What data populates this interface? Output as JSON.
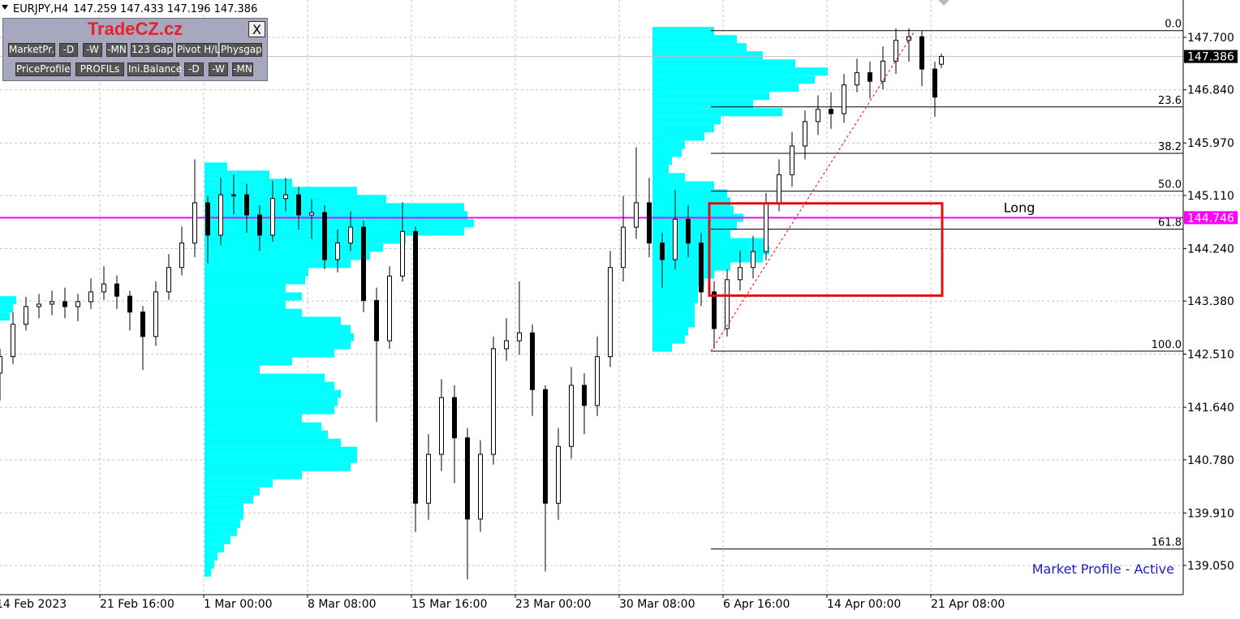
{
  "chart_data": {
    "type": "candlestick",
    "symbol": "EURJPY,H4",
    "x": [
      0,
      4,
      8,
      12,
      16,
      20,
      24,
      28,
      32,
      36,
      40,
      44,
      48,
      52,
      56,
      60,
      64,
      68,
      72,
      76,
      80,
      84,
      88,
      92,
      96,
      100,
      104,
      108,
      112,
      116,
      120,
      124,
      128,
      132,
      136,
      140,
      144,
      148,
      152,
      156,
      160,
      164,
      168,
      172,
      176,
      180,
      184,
      188,
      192,
      196,
      200,
      204,
      208,
      212,
      216,
      220,
      224,
      228,
      232,
      236,
      240,
      244,
      248,
      252,
      256,
      260,
      264,
      268,
      272,
      276,
      280,
      284,
      288,
      290
    ],
    "open": [
      142.2,
      142.47,
      143.0,
      143.29,
      143.33,
      143.37,
      143.29,
      143.37,
      143.53,
      143.66,
      143.46,
      143.2,
      142.8,
      143.53,
      143.93,
      144.33,
      144.99,
      144.46,
      145.12,
      145.12,
      144.79,
      144.46,
      145.06,
      145.12,
      144.79,
      144.83,
      144.06,
      144.33,
      144.59,
      143.39,
      142.73,
      143.79,
      144.52,
      140.07,
      140.87,
      141.8,
      141.14,
      139.81,
      140.87,
      142.6,
      142.73,
      142.86,
      141.93,
      140.07,
      141.0,
      142.0,
      141.67,
      142.47,
      143.93,
      144.59,
      144.99,
      144.33,
      144.06,
      144.72,
      144.33,
      143.53,
      142.93,
      143.73,
      143.93,
      144.19,
      144.99,
      145.45,
      145.92,
      146.32,
      146.52,
      146.45,
      146.92,
      147.12,
      146.98,
      147.31,
      147.65,
      147.71,
      147.18,
      147.259
    ],
    "high": [
      142.6,
      143.2,
      143.45,
      143.5,
      143.55,
      143.6,
      143.5,
      143.75,
      143.95,
      143.8,
      143.55,
      143.3,
      143.7,
      144.15,
      144.6,
      145.7,
      145.1,
      145.4,
      145.45,
      145.3,
      144.95,
      145.35,
      145.4,
      145.25,
      145.05,
      144.95,
      144.55,
      144.85,
      144.7,
      143.6,
      143.95,
      145.0,
      144.6,
      141.2,
      142.1,
      142.0,
      141.3,
      141.1,
      142.8,
      143.1,
      143.7,
      143.0,
      142.0,
      141.3,
      142.3,
      142.2,
      142.8,
      144.2,
      145.1,
      145.9,
      145.4,
      144.5,
      145.2,
      144.95,
      144.5,
      143.7,
      143.9,
      144.2,
      144.45,
      145.15,
      145.7,
      146.15,
      146.5,
      146.75,
      146.8,
      147.1,
      147.35,
      147.3,
      147.55,
      147.85,
      147.85,
      147.8,
      147.3,
      147.433
    ],
    "low": [
      141.75,
      142.35,
      142.9,
      143.1,
      143.15,
      143.1,
      143.05,
      143.25,
      143.4,
      143.25,
      142.9,
      142.25,
      142.65,
      143.4,
      143.8,
      144.1,
      144.0,
      144.3,
      144.8,
      144.5,
      144.2,
      144.35,
      144.85,
      144.55,
      144.4,
      143.9,
      143.85,
      144.2,
      143.2,
      141.4,
      142.6,
      143.7,
      139.6,
      139.8,
      140.6,
      140.4,
      138.82,
      139.6,
      140.7,
      142.4,
      142.5,
      141.5,
      138.95,
      139.8,
      140.8,
      141.2,
      141.5,
      142.3,
      143.7,
      144.4,
      144.1,
      143.6,
      143.9,
      144.1,
      143.3,
      142.6,
      142.8,
      143.55,
      143.75,
      144.05,
      144.85,
      145.25,
      145.7,
      146.1,
      146.2,
      146.3,
      146.8,
      146.7,
      146.85,
      147.1,
      147.3,
      146.9,
      146.4,
      147.196
    ],
    "close": [
      142.47,
      143.0,
      143.29,
      143.33,
      143.37,
      143.29,
      143.37,
      143.53,
      143.66,
      143.46,
      143.2,
      142.8,
      143.53,
      143.93,
      144.33,
      144.99,
      144.46,
      145.12,
      145.12,
      144.79,
      144.46,
      145.06,
      145.12,
      144.79,
      144.83,
      144.06,
      144.33,
      144.59,
      143.39,
      142.73,
      143.79,
      144.52,
      140.07,
      140.87,
      141.8,
      141.14,
      139.81,
      140.87,
      142.6,
      142.73,
      142.86,
      141.93,
      140.07,
      141.0,
      142.0,
      141.67,
      142.47,
      143.93,
      144.59,
      144.99,
      144.33,
      144.06,
      144.72,
      144.33,
      143.53,
      142.93,
      143.73,
      143.93,
      144.19,
      144.99,
      145.45,
      145.92,
      146.32,
      146.52,
      146.45,
      146.92,
      147.12,
      146.98,
      147.31,
      147.65,
      147.71,
      147.18,
      146.72,
      147.386
    ],
    "bull_color": "#ffffff",
    "bear_color": "#000000",
    "outline_color": "#000000",
    "xlim": [
      0,
      364.5
    ],
    "xticks": [
      {
        "value": -1.25,
        "label": "14 Feb 2023"
      },
      {
        "value": 30.75,
        "label": "21 Feb 16:00"
      },
      {
        "value": 62.75,
        "label": "1 Mar 00:00"
      },
      {
        "value": 94.75,
        "label": "8 Mar 08:00"
      },
      {
        "value": 126.75,
        "label": "15 Mar 16:00"
      },
      {
        "value": 158.75,
        "label": "23 Mar 00:00"
      },
      {
        "value": 190.75,
        "label": "30 Mar 08:00"
      },
      {
        "value": 222.75,
        "label": "6 Apr 16:00"
      },
      {
        "value": 254.75,
        "label": "14 Apr 00:00"
      },
      {
        "value": 286.75,
        "label": "21 Apr 08:00"
      }
    ],
    "ylim": [
      138.572,
      148.311
    ],
    "yticks": [
      {
        "value": 147.7,
        "label": "147.700"
      },
      {
        "value": 146.84,
        "label": "146.840"
      },
      {
        "value": 145.97,
        "label": "145.970"
      },
      {
        "value": 145.11,
        "label": "145.110"
      },
      {
        "value": 144.24,
        "label": "144.240"
      },
      {
        "value": 143.38,
        "label": "143.380"
      },
      {
        "value": 142.51,
        "label": "142.510"
      },
      {
        "value": 141.64,
        "label": "141.640"
      },
      {
        "value": 140.78,
        "label": "140.780"
      },
      {
        "value": 139.91,
        "label": "139.910"
      },
      {
        "value": 139.05,
        "label": "139.050"
      }
    ],
    "grid": true,
    "profiles": [
      {
        "start": 63,
        "price_top": 145.65,
        "price_step": 0.133,
        "color": "#00ffff",
        "widths": [
          7,
          20,
          27,
          47,
          56,
          80,
          81,
          83,
          80,
          62,
          55,
          51,
          45,
          32,
          31,
          25,
          30,
          25,
          30,
          42,
          45,
          46,
          45,
          40,
          27,
          17,
          37,
          40,
          42,
          41,
          40,
          30,
          36,
          38,
          42,
          47,
          47,
          45,
          30,
          21,
          17,
          15,
          12,
          12,
          11,
          10,
          8,
          6,
          4,
          3,
          2
        ]
      },
      {
        "start": 201,
        "price_top": 147.87,
        "price_step": 0.133,
        "color": "#00ffff",
        "widths": [
          19,
          26,
          29,
          34,
          44,
          54,
          50,
          45,
          36,
          31,
          40,
          21,
          19,
          16,
          10,
          9,
          6,
          5,
          10,
          19,
          23,
          24,
          25,
          28,
          26,
          24,
          35,
          36,
          34,
          24,
          19,
          16,
          14,
          14,
          13,
          13,
          13,
          11,
          10,
          6
        ]
      },
      {
        "start": 0,
        "price_top": 143.46,
        "price_step": 0.133,
        "color": "#00ffff",
        "widths": [
          5,
          4,
          3
        ]
      }
    ],
    "hline": {
      "value": 144.746,
      "label": "Long",
      "color": "#ff00ff"
    },
    "fibonacci": {
      "start": 219,
      "color": "#000000",
      "levels": [
        {
          "label": "0.0",
          "price": 147.81
        },
        {
          "label": "23.6",
          "price": 146.56
        },
        {
          "label": "38.2",
          "price": 145.8
        },
        {
          "label": "50.0",
          "price": 145.18
        },
        {
          "label": "61.8",
          "price": 144.56
        },
        {
          "label": "100.0",
          "price": 142.56
        },
        {
          "label": "161.8",
          "price": 139.32
        }
      ]
    },
    "trendline": {
      "x": [
        219,
        281.5
      ],
      "y": [
        142.56,
        147.78
      ],
      "color": "#ff0000"
    },
    "rectangle": {
      "x": [
        218.5,
        290.25
      ],
      "y": [
        143.47,
        144.98
      ],
      "color": "#e01010"
    },
    "status": "Market Profile - Active"
  },
  "panel": {
    "title": "TradeCZ.cz",
    "close": "X",
    "row1": [
      "MarketPr.",
      "-D",
      "-W",
      "-MN",
      "123 Gap",
      "Pivot H/L",
      "Physgap"
    ],
    "row2": [
      "PriceProfile",
      "PROFILs",
      "Ini.Balance",
      "-D",
      "-W",
      "-MN"
    ]
  }
}
